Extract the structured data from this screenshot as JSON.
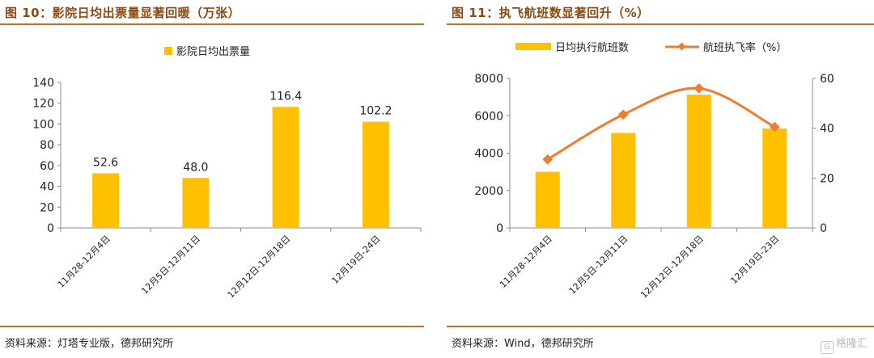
{
  "left_panel": {
    "title": "图 10：影院日均出票量显著回暖（万张）",
    "source": "资料来源：灯塔专业版，德邦研究所"
  },
  "right_panel": {
    "title": "图 11：执飞航班数显著回升（%）",
    "source": "资料来源：Wind，德邦研究所"
  },
  "watermark": {
    "icon_text": "G",
    "text": "格隆汇"
  },
  "colors": {
    "bar": "#FFC000",
    "line": "#ED7D31",
    "title": "#8a4a12",
    "rule": "#b5752d"
  },
  "chart_data": [
    {
      "type": "bar",
      "title": "",
      "categories": [
        "11月28-12月4日",
        "12月5日-12月11日",
        "12月12日-12月18日",
        "12月19日-24日"
      ],
      "series": [
        {
          "name": "影院日均出票量",
          "values": [
            52.6,
            48.0,
            116.4,
            102.2
          ]
        }
      ],
      "data_labels": [
        "52.6",
        "48.0",
        "116.4",
        "102.2"
      ],
      "ylim": [
        0,
        140
      ],
      "yticks": [
        "0",
        "20",
        "40",
        "60",
        "80",
        "100",
        "120",
        "140"
      ],
      "xlabel": "",
      "ylabel": "",
      "legend": "top-center",
      "grid": false
    },
    {
      "type": "bar",
      "title": "",
      "categories": [
        "11月28-12月4日",
        "12月5日-12月11日",
        "12月12日-12月18日",
        "12月19日-23日"
      ],
      "series": [
        {
          "name": "日均执行航班数",
          "type": "bar",
          "axis": "left",
          "values": [
            3000,
            5080,
            7130,
            5320
          ]
        },
        {
          "name": "航班执飞率（%）",
          "type": "line",
          "axis": "right",
          "values": [
            27.5,
            45.5,
            56,
            40.5
          ]
        }
      ],
      "ylim": [
        0,
        8000
      ],
      "yticks": [
        "0",
        "2000",
        "4000",
        "6000",
        "8000"
      ],
      "y2lim": [
        0,
        60
      ],
      "y2ticks": [
        "0",
        "20",
        "40",
        "60"
      ],
      "xlabel": "",
      "ylabel": "",
      "legend": "top-center",
      "grid": false
    }
  ]
}
